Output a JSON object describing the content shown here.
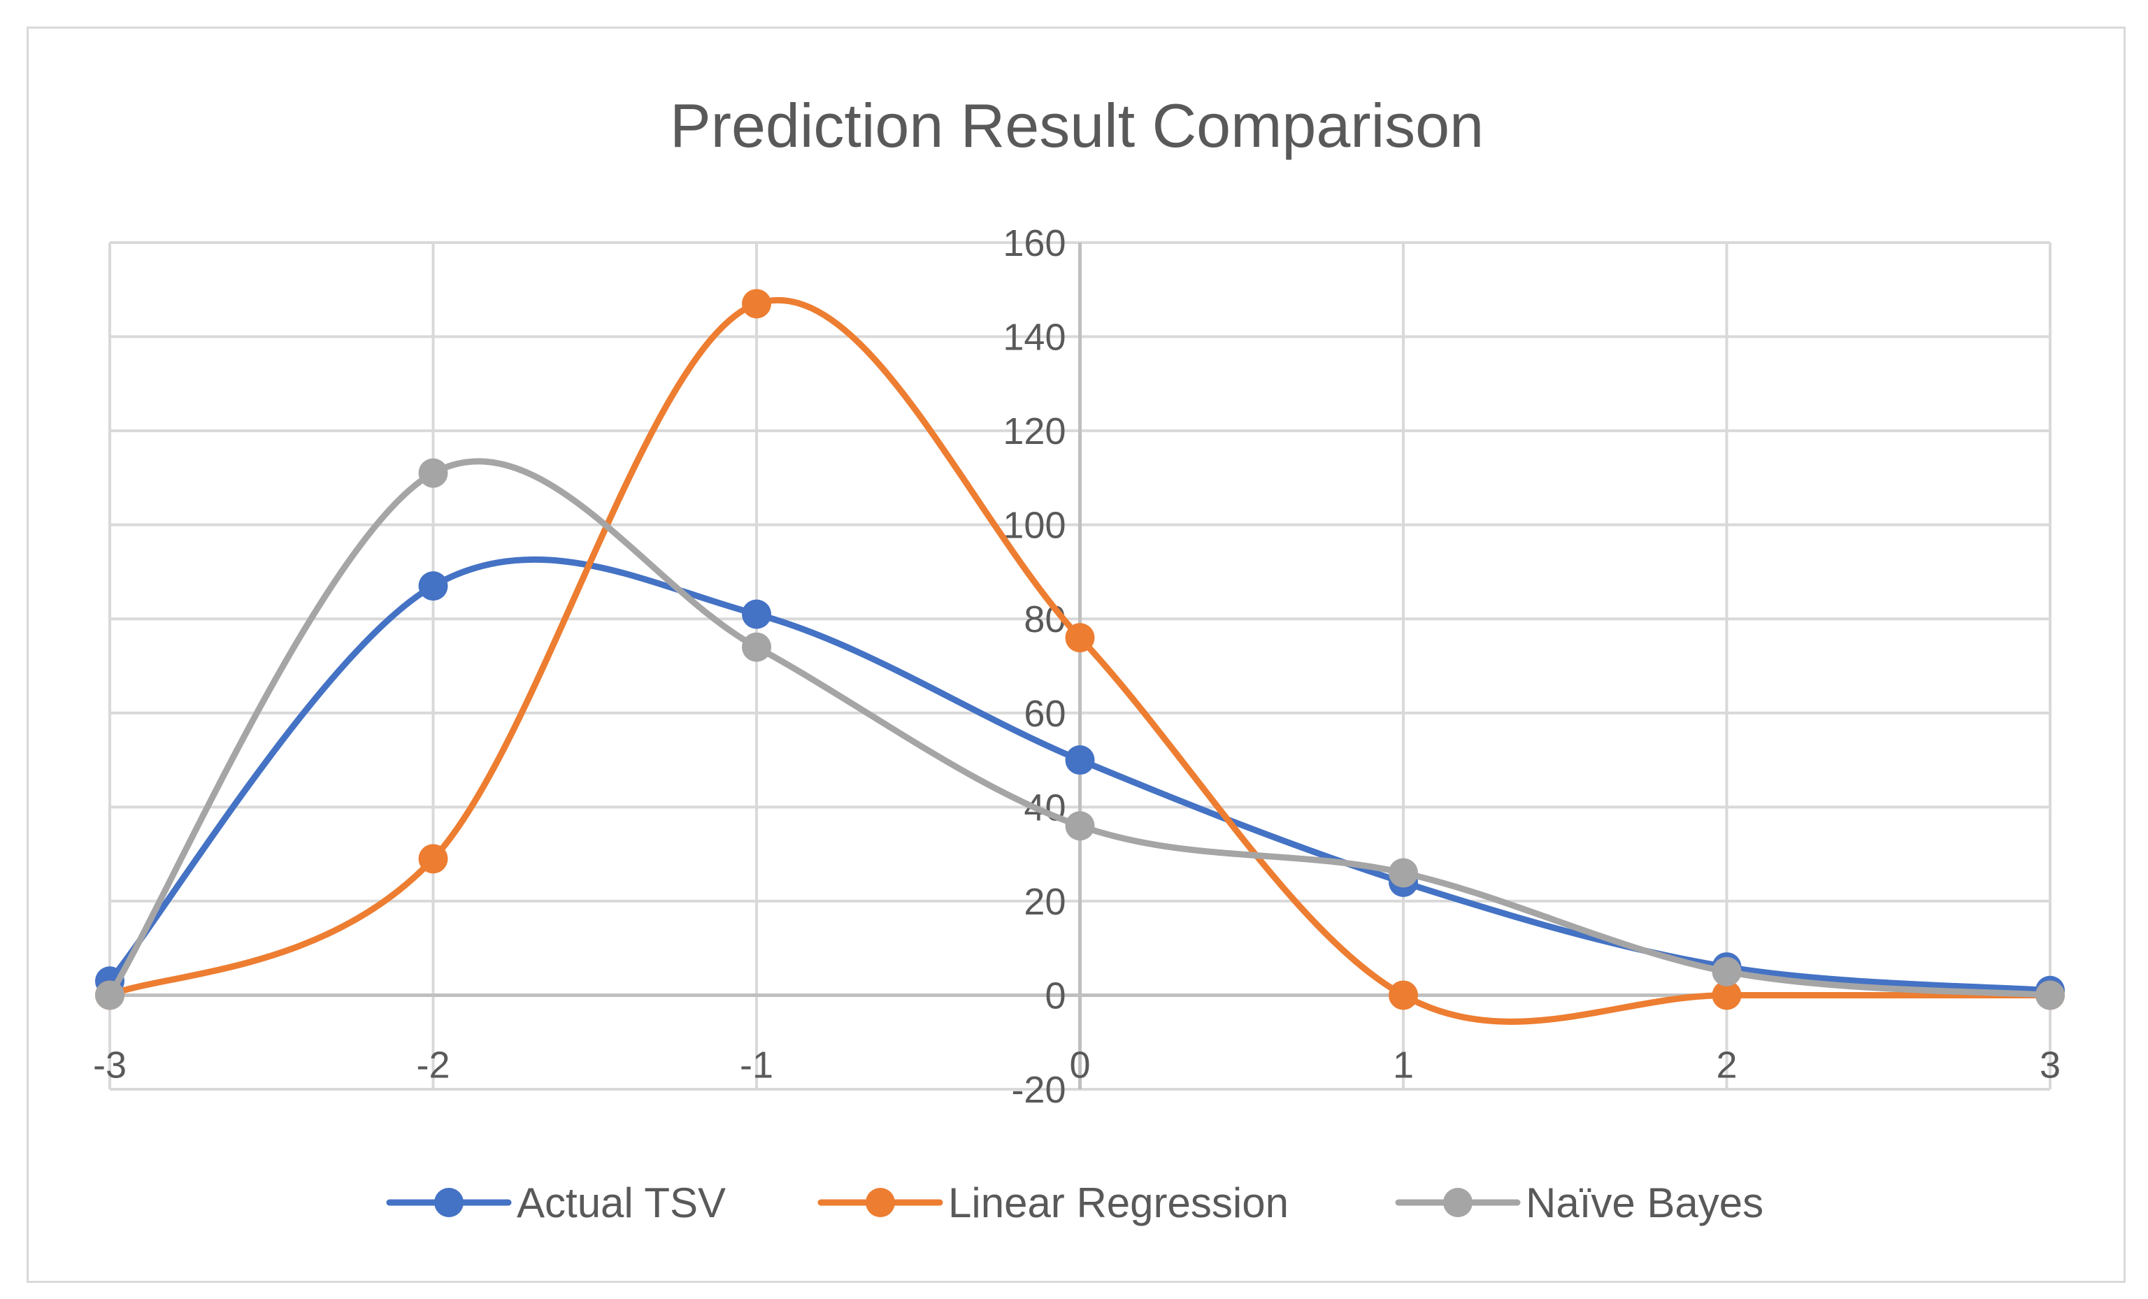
{
  "chart_data": {
    "type": "line",
    "title": "Prediction Result Comparison",
    "xlabel": "",
    "ylabel": "",
    "x": [
      -3,
      -2,
      -1,
      0,
      1,
      2,
      3
    ],
    "x_tick_labels": [
      "-3",
      "-2",
      "-1",
      "0",
      "1",
      "2",
      "3"
    ],
    "y_tick_labels": [
      "-20",
      "0",
      "20",
      "40",
      "60",
      "80",
      "100",
      "120",
      "140",
      "160"
    ],
    "xlim": [
      -3,
      3
    ],
    "ylim": [
      -20,
      160
    ],
    "y_step": 20,
    "grid": true,
    "smooth": true,
    "legend_position": "bottom",
    "series": [
      {
        "name": "Actual TSV",
        "color": "#4472c4",
        "values": [
          3,
          87,
          81,
          50,
          24,
          6,
          1
        ]
      },
      {
        "name": "Linear Regression",
        "color": "#ed7d31",
        "values": [
          0,
          29,
          147,
          76,
          0,
          0,
          0
        ]
      },
      {
        "name": "Naïve Bayes",
        "color": "#a5a5a5",
        "values": [
          0,
          111,
          74,
          36,
          26,
          5,
          0
        ]
      }
    ]
  }
}
